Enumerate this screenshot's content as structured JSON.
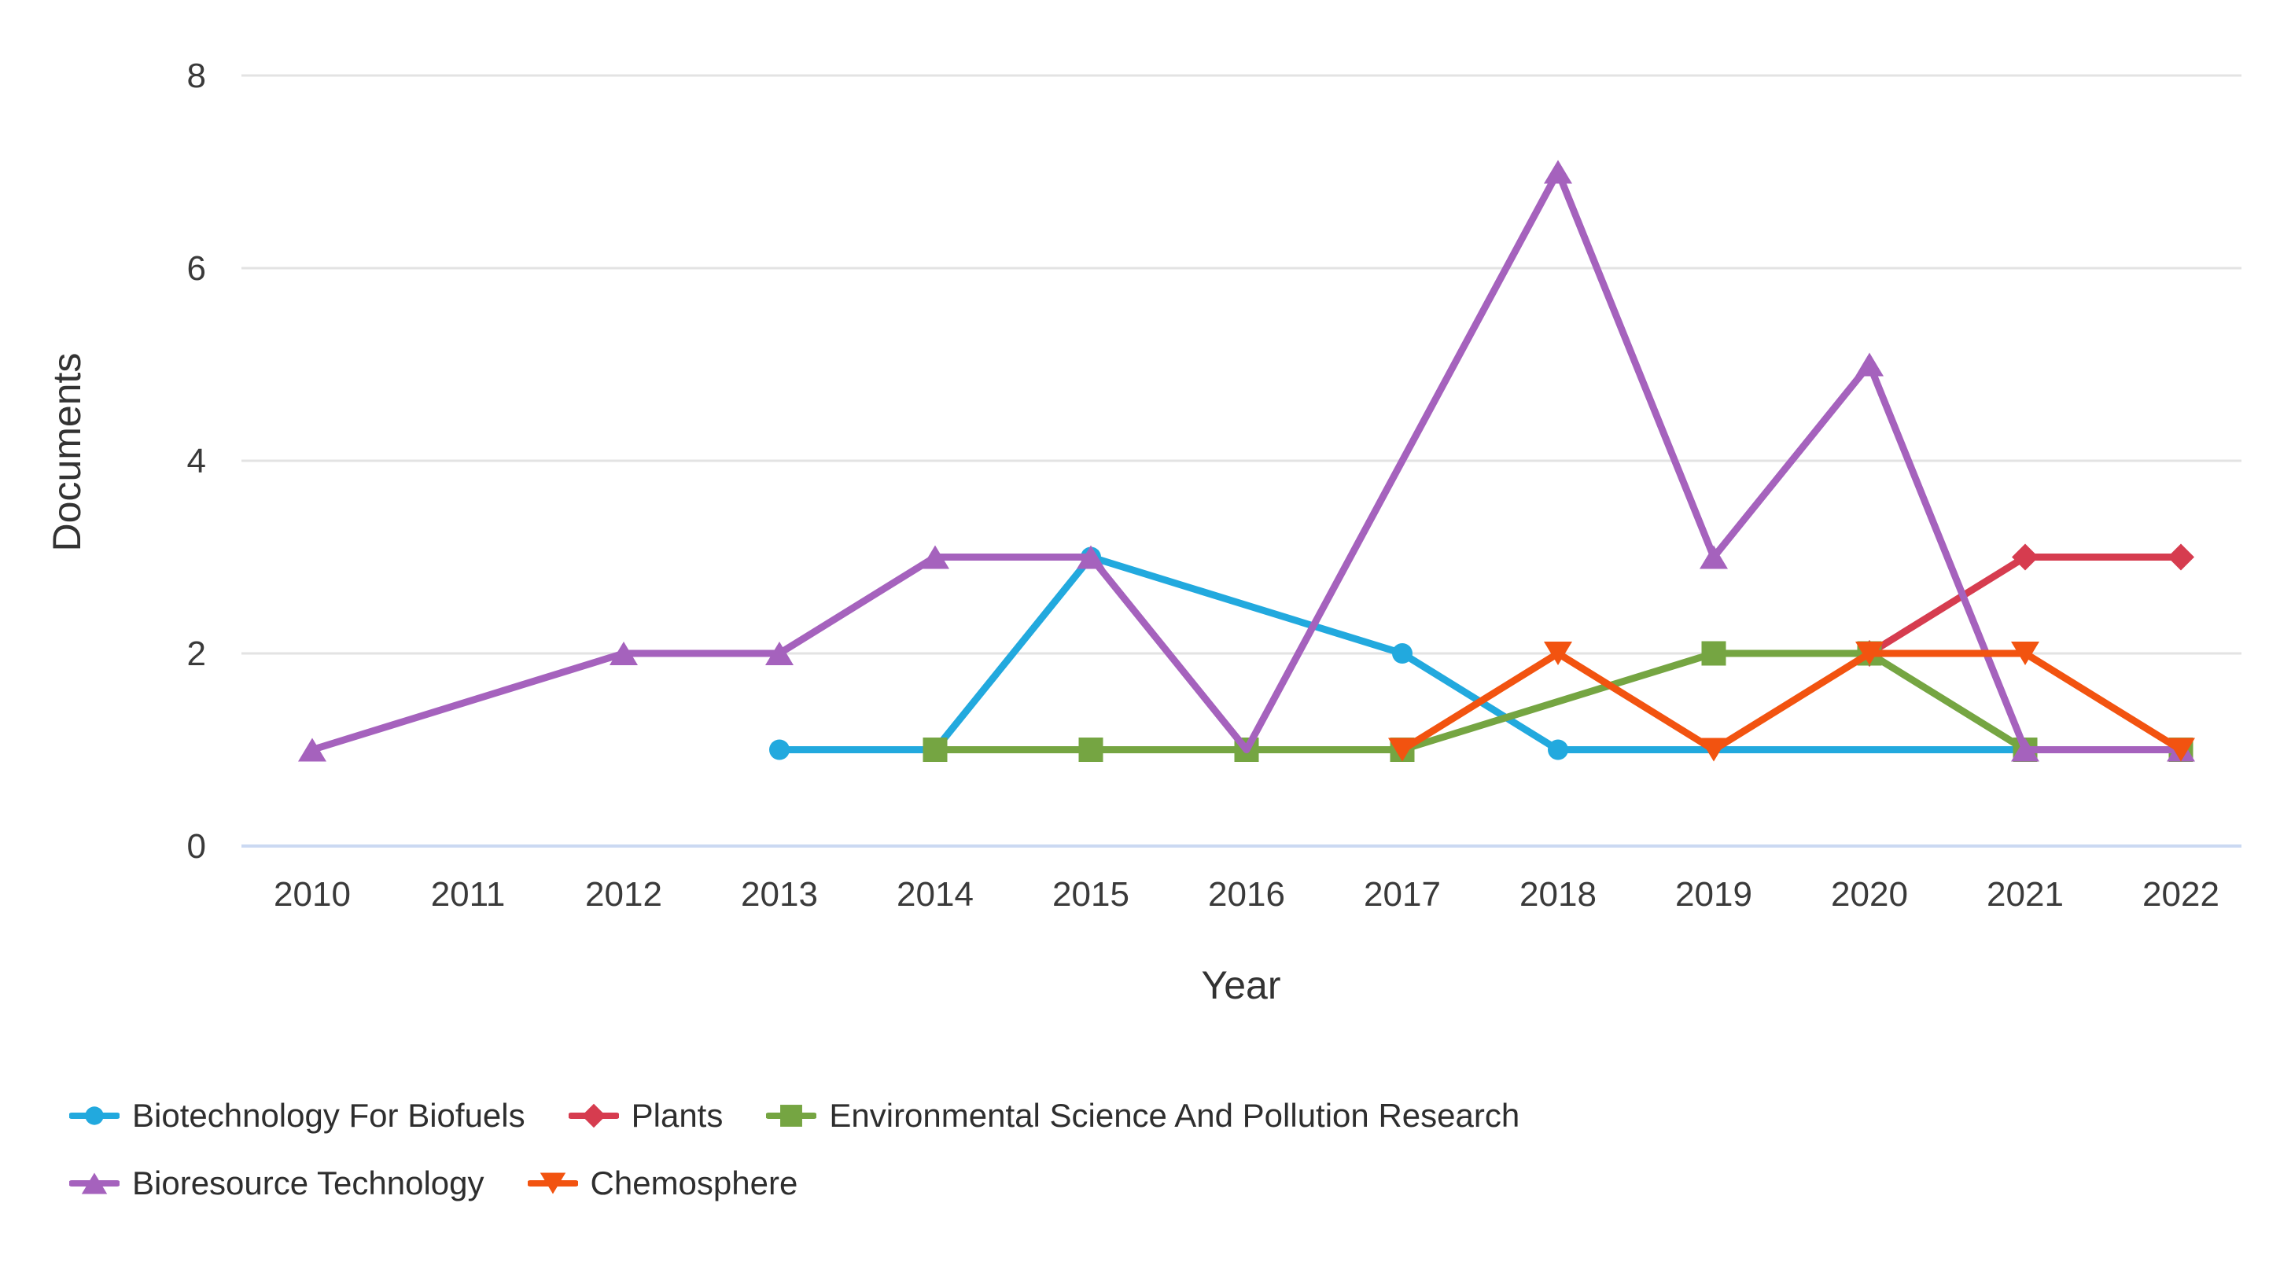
{
  "chart_data": {
    "type": "line",
    "title": "",
    "xlabel": "Year",
    "ylabel": "Documents",
    "x_ticks": [
      2010,
      2011,
      2012,
      2013,
      2014,
      2015,
      2016,
      2017,
      2018,
      2019,
      2020,
      2021,
      2022
    ],
    "y_ticks": [
      0,
      2,
      4,
      6,
      8
    ],
    "xlim": [
      2010,
      2022
    ],
    "ylim": [
      0,
      8
    ],
    "grid": "horizontal",
    "legend_position": "bottom-left",
    "series": [
      {
        "name": "Biotechnology For Biofuels",
        "color": "#22A9DE",
        "marker": "circle",
        "points": [
          [
            2013,
            1
          ],
          [
            2014,
            1
          ],
          [
            2015,
            3
          ],
          [
            2017,
            2
          ],
          [
            2018,
            1
          ],
          [
            2021,
            1
          ]
        ],
        "hide_marker_at": []
      },
      {
        "name": "Plants",
        "color": "#D63C4F",
        "marker": "diamond",
        "points": [
          [
            2020,
            2
          ],
          [
            2021,
            3
          ],
          [
            2022,
            3
          ]
        ],
        "hide_marker_at": []
      },
      {
        "name": "Environmental Science And Pollution Research",
        "color": "#75A542",
        "marker": "square",
        "points": [
          [
            2014,
            1
          ],
          [
            2015,
            1
          ],
          [
            2016,
            1
          ],
          [
            2017,
            1
          ],
          [
            2019,
            2
          ],
          [
            2020,
            2
          ],
          [
            2021,
            1
          ],
          [
            2022,
            1
          ]
        ],
        "hide_marker_at": []
      },
      {
        "name": "Bioresource Technology",
        "color": "#A562BD",
        "marker": "triangle-up",
        "points": [
          [
            2010,
            1
          ],
          [
            2012,
            2
          ],
          [
            2013,
            2
          ],
          [
            2014,
            3
          ],
          [
            2015,
            3
          ],
          [
            2016,
            1
          ],
          [
            2018,
            7
          ],
          [
            2019,
            3
          ],
          [
            2020,
            5
          ],
          [
            2021,
            1
          ],
          [
            2022,
            1
          ]
        ],
        "hide_marker_at": [
          2016
        ]
      },
      {
        "name": "Chemosphere",
        "color": "#F25310",
        "marker": "triangle-down",
        "points": [
          [
            2017,
            1
          ],
          [
            2018,
            2
          ],
          [
            2019,
            1
          ],
          [
            2020,
            2
          ],
          [
            2021,
            2
          ],
          [
            2022,
            1
          ]
        ],
        "hide_marker_at": []
      }
    ],
    "colors": {
      "grid": "#E3E3E3",
      "axis_line": "#CBD9F2",
      "tick_text": "#3A3A3A",
      "axis_title": "#333333",
      "legend_text": "#2E2E2E",
      "background": "#FFFFFF"
    }
  },
  "legend": {
    "rows": [
      [
        0,
        1,
        2
      ],
      [
        3,
        4
      ]
    ]
  }
}
